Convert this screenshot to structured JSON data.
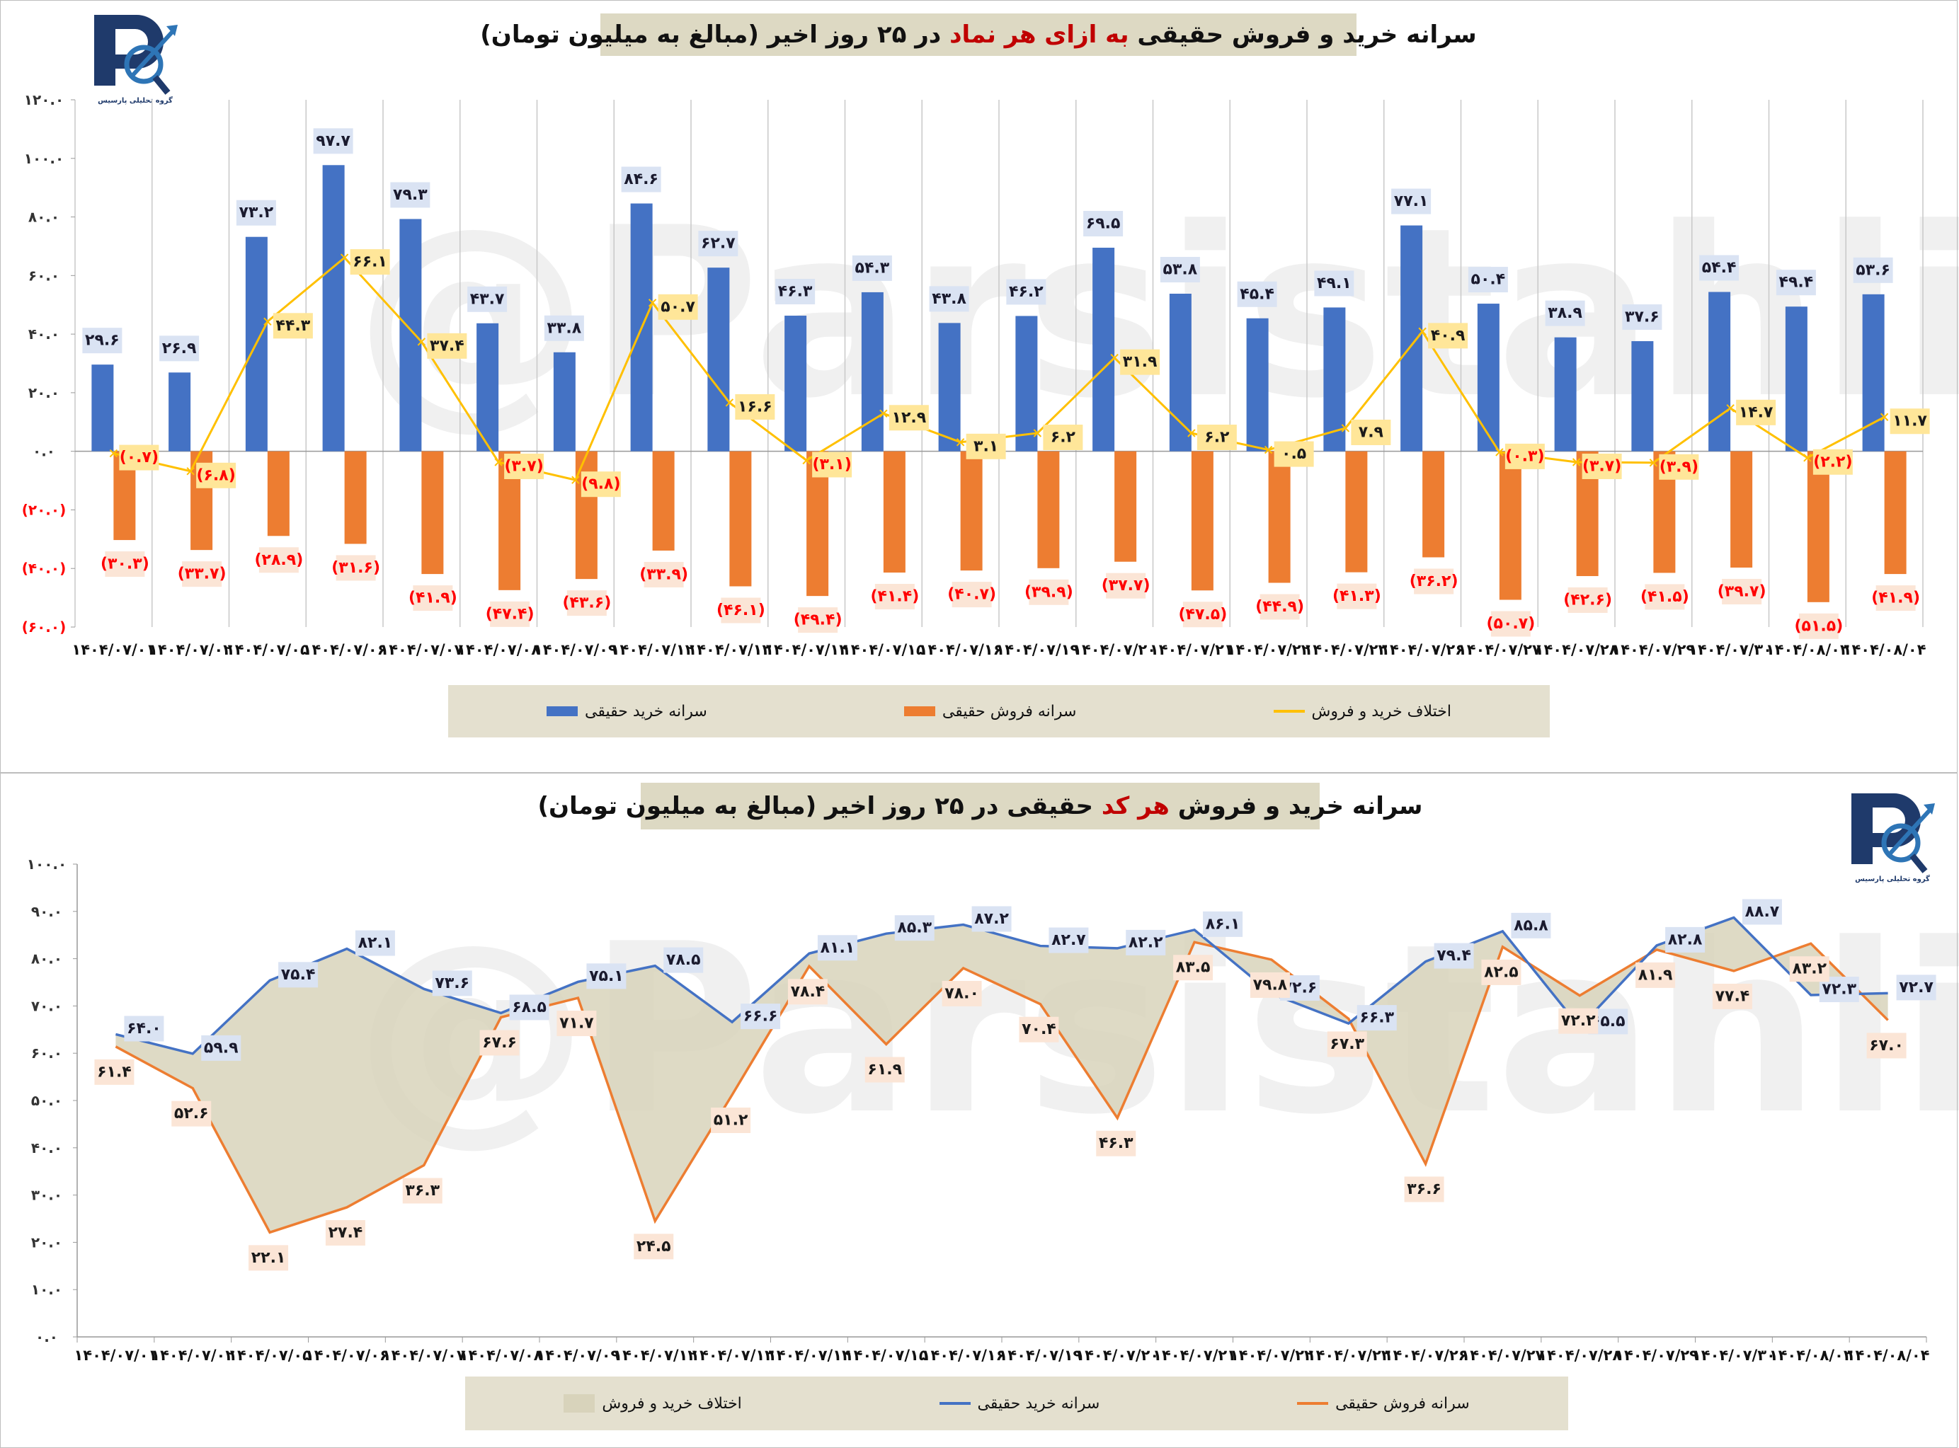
{
  "watermark": "@Parsistahli",
  "logo_text": "گروه تحلیلی پارسیس",
  "colors": {
    "buy": "#4472C4",
    "sell": "#ED7D31",
    "diff": "#FFC000",
    "area": "#D8D3BB",
    "title_bg": "#DDD9C3",
    "legend_bg": "#E4E0CF",
    "highlight": "#C00000",
    "negative_label": "#FF0000"
  },
  "chart1": {
    "title_pre": "سرانه خرید و فروش حقیقی ",
    "title_highlight": "به ازای هر نماد",
    "title_post": " در ۲۵ روز اخیر (مبالغ به میلیون تومان)",
    "legend": {
      "buy": "سرانه خرید حقیقی",
      "sell": "سرانه فروش حقیقی",
      "diff": "اختلاف خرید و فروش"
    }
  },
  "chart2": {
    "title_pre": "سرانه خرید و فروش ",
    "title_highlight": "هر کد",
    "title_post": " حقیقی در ۲۵ روز اخیر (مبالغ به میلیون تومان)",
    "legend": {
      "diff": "اختلاف خرید و فروش",
      "buy": "سرانه خرید حقیقی",
      "sell": "سرانه فروش حقیقی"
    }
  },
  "chart_data": [
    {
      "type": "bar",
      "title": "سرانه خرید و فروش حقیقی به ازای هر نماد در ۲۵ روز اخیر (مبالغ به میلیون تومان)",
      "categories": [
        "۱۴۰۴/۰۷/۰۱",
        "۱۴۰۴/۰۷/۰۲",
        "۱۴۰۴/۰۷/۰۵",
        "۱۴۰۴/۰۷/۰۶",
        "۱۴۰۴/۰۷/۰۷",
        "۱۴۰۴/۰۷/۰۸",
        "۱۴۰۴/۰۷/۰۹",
        "۱۴۰۴/۰۷/۱۲",
        "۱۴۰۴/۰۷/۱۳",
        "۱۴۰۴/۰۷/۱۴",
        "۱۴۰۴/۰۷/۱۵",
        "۱۴۰۴/۰۷/۱۶",
        "۱۴۰۴/۰۷/۱۹",
        "۱۴۰۴/۰۷/۲۰",
        "۱۴۰۴/۰۷/۲۱",
        "۱۴۰۴/۰۷/۲۲",
        "۱۴۰۴/۰۷/۲۳",
        "۱۴۰۴/۰۷/۲۶",
        "۱۴۰۴/۰۷/۲۷",
        "۱۴۰۴/۰۷/۲۸",
        "۱۴۰۴/۰۷/۲۹",
        "۱۴۰۴/۰۷/۳۰",
        "۱۴۰۴/۰۸/۰۳",
        "۱۴۰۴/۰۸/۰۴"
      ],
      "series": [
        {
          "name": "سرانه خرید حقیقی",
          "kind": "bar",
          "values": [
            29.6,
            26.9,
            73.2,
            97.7,
            79.3,
            43.7,
            33.8,
            84.6,
            62.7,
            46.3,
            54.3,
            43.8,
            46.2,
            69.5,
            53.8,
            45.4,
            49.1,
            77.1,
            50.4,
            38.9,
            37.6,
            54.4,
            49.4,
            53.6
          ]
        },
        {
          "name": "سرانه فروش حقیقی",
          "kind": "bar",
          "values": [
            -30.3,
            -33.7,
            -28.9,
            -31.6,
            -41.9,
            -47.4,
            -43.6,
            -33.9,
            -46.1,
            -49.4,
            -41.4,
            -40.7,
            -39.9,
            -37.7,
            -47.5,
            -44.9,
            -41.3,
            -36.2,
            -50.7,
            -42.6,
            -41.5,
            -39.7,
            -51.5,
            -41.9
          ]
        },
        {
          "name": "اختلاف خرید و فروش",
          "kind": "line",
          "values": [
            -0.7,
            -6.8,
            44.3,
            66.1,
            37.4,
            -3.7,
            -9.8,
            50.7,
            16.6,
            -3.1,
            12.9,
            3.1,
            6.2,
            31.9,
            6.2,
            0.5,
            7.9,
            40.9,
            -0.3,
            -3.7,
            -3.9,
            14.7,
            -2.2,
            11.7
          ]
        }
      ],
      "ylim": [
        -60,
        120
      ],
      "yticks": [
        120,
        100,
        80,
        60,
        40,
        20,
        0,
        -20,
        -40,
        -60
      ],
      "grid": "vertical",
      "legend_position": "bottom"
    },
    {
      "type": "line",
      "title": "سرانه خرید و فروش هر کد حقیقی در ۲۵ روز اخیر (مبالغ به میلیون تومان)",
      "categories": [
        "۱۴۰۴/۰۷/۰۱",
        "۱۴۰۴/۰۷/۰۲",
        "۱۴۰۴/۰۷/۰۵",
        "۱۴۰۴/۰۷/۰۶",
        "۱۴۰۴/۰۷/۰۷",
        "۱۴۰۴/۰۷/۰۸",
        "۱۴۰۴/۰۷/۰۹",
        "۱۴۰۴/۰۷/۱۲",
        "۱۴۰۴/۰۷/۱۳",
        "۱۴۰۴/۰۷/۱۴",
        "۱۴۰۴/۰۷/۱۵",
        "۱۴۰۴/۰۷/۱۶",
        "۱۴۰۴/۰۷/۱۹",
        "۱۴۰۴/۰۷/۲۰",
        "۱۴۰۴/۰۷/۲۱",
        "۱۴۰۴/۰۷/۲۲",
        "۱۴۰۴/۰۷/۲۳",
        "۱۴۰۴/۰۷/۲۶",
        "۱۴۰۴/۰۷/۲۷",
        "۱۴۰۴/۰۷/۲۸",
        "۱۴۰۴/۰۷/۲۹",
        "۱۴۰۴/۰۷/۳۰",
        "۱۴۰۴/۰۸/۰۳",
        "۱۴۰۴/۰۸/۰۴"
      ],
      "series": [
        {
          "name": "سرانه خرید حقیقی",
          "values": [
            64.0,
            59.9,
            75.4,
            82.1,
            73.6,
            68.5,
            75.1,
            78.5,
            66.6,
            81.1,
            85.3,
            87.2,
            82.7,
            82.2,
            86.1,
            72.6,
            66.3,
            79.4,
            85.8,
            65.5,
            82.8,
            88.7,
            72.3,
            72.7
          ]
        },
        {
          "name": "سرانه فروش حقیقی",
          "values": [
            61.4,
            52.6,
            22.1,
            27.4,
            36.3,
            67.6,
            71.7,
            24.5,
            51.2,
            78.4,
            61.9,
            78.0,
            70.4,
            46.3,
            83.5,
            79.8,
            67.3,
            36.6,
            82.5,
            72.2,
            81.9,
            77.4,
            83.2,
            67.0
          ]
        }
      ],
      "area_series": "اختلاف خرید و فروش",
      "ylim": [
        0,
        100
      ],
      "yticks": [
        100,
        90,
        80,
        70,
        60,
        50,
        40,
        30,
        20,
        10,
        0
      ],
      "grid": "none",
      "legend_position": "bottom"
    }
  ]
}
